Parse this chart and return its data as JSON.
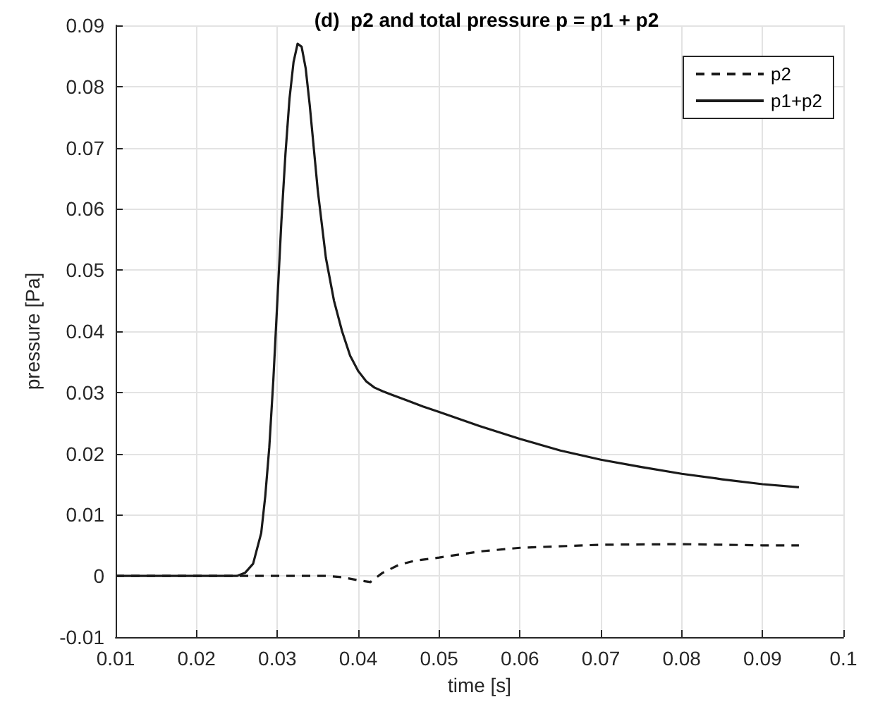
{
  "chart_data": {
    "type": "line",
    "title": "(d)  p2 and total pressure p = p1 + p2",
    "xlabel": "time [s]",
    "ylabel": "pressure [Pa]",
    "xlim": [
      0.01,
      0.1
    ],
    "xticks": [
      0.01,
      0.02,
      0.03,
      0.04,
      0.05,
      0.06,
      0.07,
      0.08,
      0.09,
      0.1
    ],
    "ylim": [
      -0.01,
      0.09
    ],
    "yticks": [
      -0.01,
      0,
      0.01,
      0.02,
      0.03,
      0.04,
      0.05,
      0.06,
      0.07,
      0.08,
      0.09
    ],
    "grid": true,
    "legend": "top right",
    "marker": "none",
    "series": [
      {
        "name": "p2",
        "color": "#1a1a1a",
        "line_style": "dashed",
        "x": [
          0.01,
          0.02,
          0.03,
          0.036,
          0.038,
          0.04,
          0.0415,
          0.043,
          0.045,
          0.047,
          0.05,
          0.055,
          0.06,
          0.07,
          0.08,
          0.09,
          0.0945
        ],
        "values": [
          0,
          0,
          0,
          0,
          -0.0002,
          -0.0007,
          -0.001,
          0.0005,
          0.0018,
          0.0025,
          0.003,
          0.004,
          0.0046,
          0.0051,
          0.0052,
          0.005,
          0.005
        ]
      },
      {
        "name": "p1+p2",
        "color": "#1a1a1a",
        "line_style": "solid",
        "x": [
          0.01,
          0.02,
          0.025,
          0.026,
          0.027,
          0.028,
          0.0285,
          0.029,
          0.0295,
          0.03,
          0.0305,
          0.031,
          0.0315,
          0.032,
          0.0325,
          0.033,
          0.0335,
          0.034,
          0.0345,
          0.035,
          0.036,
          0.037,
          0.038,
          0.039,
          0.04,
          0.041,
          0.042,
          0.043,
          0.044,
          0.046,
          0.048,
          0.05,
          0.055,
          0.06,
          0.065,
          0.07,
          0.075,
          0.08,
          0.085,
          0.09,
          0.0945
        ],
        "values": [
          0,
          0,
          0,
          0.0005,
          0.002,
          0.007,
          0.013,
          0.021,
          0.032,
          0.045,
          0.058,
          0.069,
          0.078,
          0.084,
          0.087,
          0.0865,
          0.083,
          0.077,
          0.07,
          0.063,
          0.052,
          0.045,
          0.04,
          0.036,
          0.0335,
          0.0318,
          0.0308,
          0.0302,
          0.0297,
          0.0287,
          0.0277,
          0.0268,
          0.0245,
          0.0224,
          0.0205,
          0.019,
          0.0178,
          0.0167,
          0.0158,
          0.015,
          0.0145
        ]
      }
    ]
  }
}
